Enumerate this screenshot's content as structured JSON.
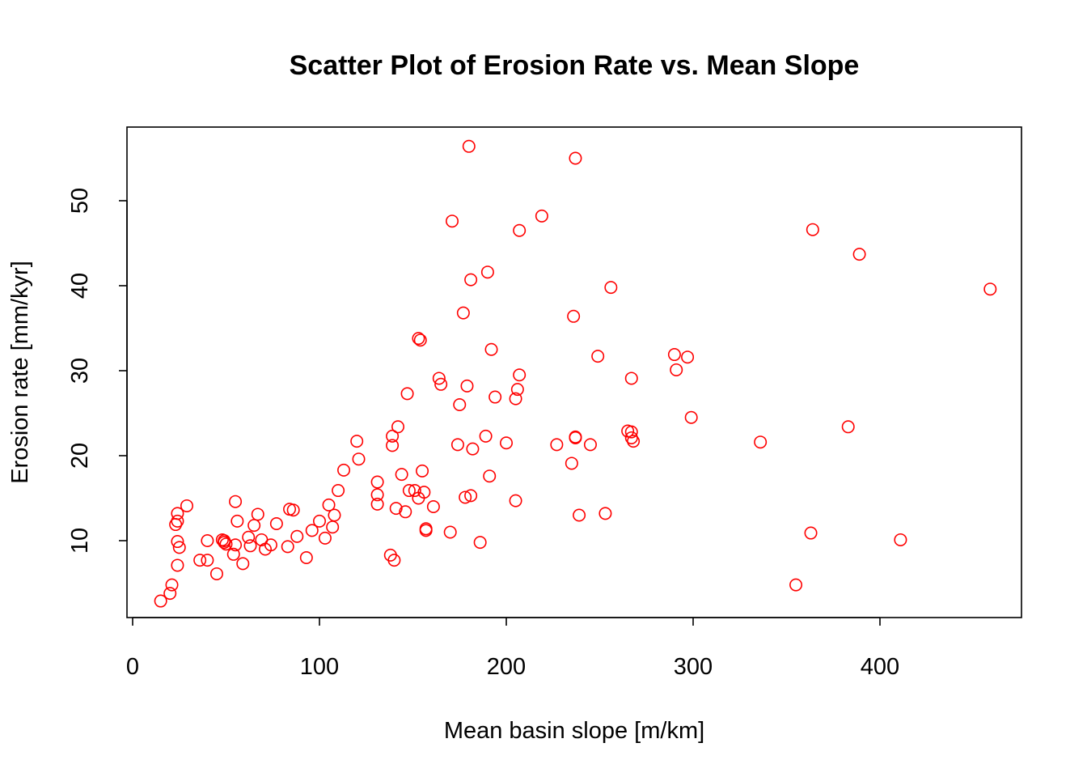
{
  "chart_data": {
    "type": "scatter",
    "title": "Scatter Plot of Erosion Rate vs. Mean Slope",
    "xlabel": "Mean basin slope [m/km]",
    "ylabel": "Erosion rate [mm/kyr]",
    "xlim": [
      0,
      480
    ],
    "ylim": [
      1,
      58
    ],
    "xticks": [
      0,
      100,
      200,
      300,
      400
    ],
    "yticks": [
      10,
      20,
      30,
      40,
      50
    ],
    "grid": false,
    "marker": "open-circle",
    "color": "#ff0000",
    "points": [
      [
        15,
        2.9
      ],
      [
        20,
        3.8
      ],
      [
        21,
        4.8
      ],
      [
        23,
        11.9
      ],
      [
        24,
        12.3
      ],
      [
        24,
        13.2
      ],
      [
        24,
        9.9
      ],
      [
        24,
        7.1
      ],
      [
        25,
        9.2
      ],
      [
        29,
        14.1
      ],
      [
        36,
        7.7
      ],
      [
        40,
        7.7
      ],
      [
        40,
        10.0
      ],
      [
        45,
        6.1
      ],
      [
        48,
        10.1
      ],
      [
        49,
        10.0
      ],
      [
        49,
        9.8
      ],
      [
        50,
        9.6
      ],
      [
        54,
        8.4
      ],
      [
        55,
        9.5
      ],
      [
        55,
        14.6
      ],
      [
        56,
        12.3
      ],
      [
        59,
        7.3
      ],
      [
        62,
        10.4
      ],
      [
        63,
        9.4
      ],
      [
        65,
        11.8
      ],
      [
        67,
        13.1
      ],
      [
        69,
        10.1
      ],
      [
        71,
        9.0
      ],
      [
        74,
        9.5
      ],
      [
        77,
        12.0
      ],
      [
        83,
        9.3
      ],
      [
        84,
        13.7
      ],
      [
        86,
        13.6
      ],
      [
        88,
        10.5
      ],
      [
        93,
        8.0
      ],
      [
        96,
        11.2
      ],
      [
        100,
        12.3
      ],
      [
        103,
        10.3
      ],
      [
        105,
        14.2
      ],
      [
        107,
        11.6
      ],
      [
        108,
        13.0
      ],
      [
        110,
        15.9
      ],
      [
        113,
        18.3
      ],
      [
        120,
        21.7
      ],
      [
        121,
        19.6
      ],
      [
        131,
        16.9
      ],
      [
        131,
        15.4
      ],
      [
        131,
        14.3
      ],
      [
        138,
        8.3
      ],
      [
        139,
        22.3
      ],
      [
        139,
        21.2
      ],
      [
        140,
        7.7
      ],
      [
        141,
        13.8
      ],
      [
        142,
        23.4
      ],
      [
        144,
        17.8
      ],
      [
        146,
        13.4
      ],
      [
        147,
        27.3
      ],
      [
        148,
        15.9
      ],
      [
        151,
        15.9
      ],
      [
        153,
        15.0
      ],
      [
        153,
        33.8
      ],
      [
        154,
        33.6
      ],
      [
        155,
        18.2
      ],
      [
        156,
        15.7
      ],
      [
        157,
        11.4
      ],
      [
        157,
        11.2
      ],
      [
        161,
        14.0
      ],
      [
        164,
        29.1
      ],
      [
        165,
        28.4
      ],
      [
        170,
        11.0
      ],
      [
        171,
        47.6
      ],
      [
        174,
        21.3
      ],
      [
        175,
        26.0
      ],
      [
        177,
        36.8
      ],
      [
        178,
        15.1
      ],
      [
        179,
        28.2
      ],
      [
        180,
        56.4
      ],
      [
        181,
        40.7
      ],
      [
        181,
        15.3
      ],
      [
        182,
        20.8
      ],
      [
        186,
        9.8
      ],
      [
        189,
        22.3
      ],
      [
        190,
        41.6
      ],
      [
        191,
        17.6
      ],
      [
        192,
        32.5
      ],
      [
        194,
        26.9
      ],
      [
        200,
        21.5
      ],
      [
        205,
        14.7
      ],
      [
        205,
        26.7
      ],
      [
        206,
        27.8
      ],
      [
        207,
        46.5
      ],
      [
        207,
        29.5
      ],
      [
        219,
        48.2
      ],
      [
        227,
        21.3
      ],
      [
        235,
        19.1
      ],
      [
        236,
        36.4
      ],
      [
        237,
        55.0
      ],
      [
        237,
        22.1
      ],
      [
        237,
        22.2
      ],
      [
        239,
        13.0
      ],
      [
        245,
        21.3
      ],
      [
        249,
        31.7
      ],
      [
        253,
        13.2
      ],
      [
        256,
        39.8
      ],
      [
        265,
        22.9
      ],
      [
        267,
        22.8
      ],
      [
        267,
        22.1
      ],
      [
        267,
        29.1
      ],
      [
        268,
        21.7
      ],
      [
        290,
        31.9
      ],
      [
        291,
        30.1
      ],
      [
        297,
        31.6
      ],
      [
        299,
        24.5
      ],
      [
        336,
        21.6
      ],
      [
        355,
        4.8
      ],
      [
        363,
        10.9
      ],
      [
        364,
        46.6
      ],
      [
        383,
        23.4
      ],
      [
        389,
        43.7
      ],
      [
        411,
        10.1
      ],
      [
        459,
        39.6
      ]
    ]
  }
}
